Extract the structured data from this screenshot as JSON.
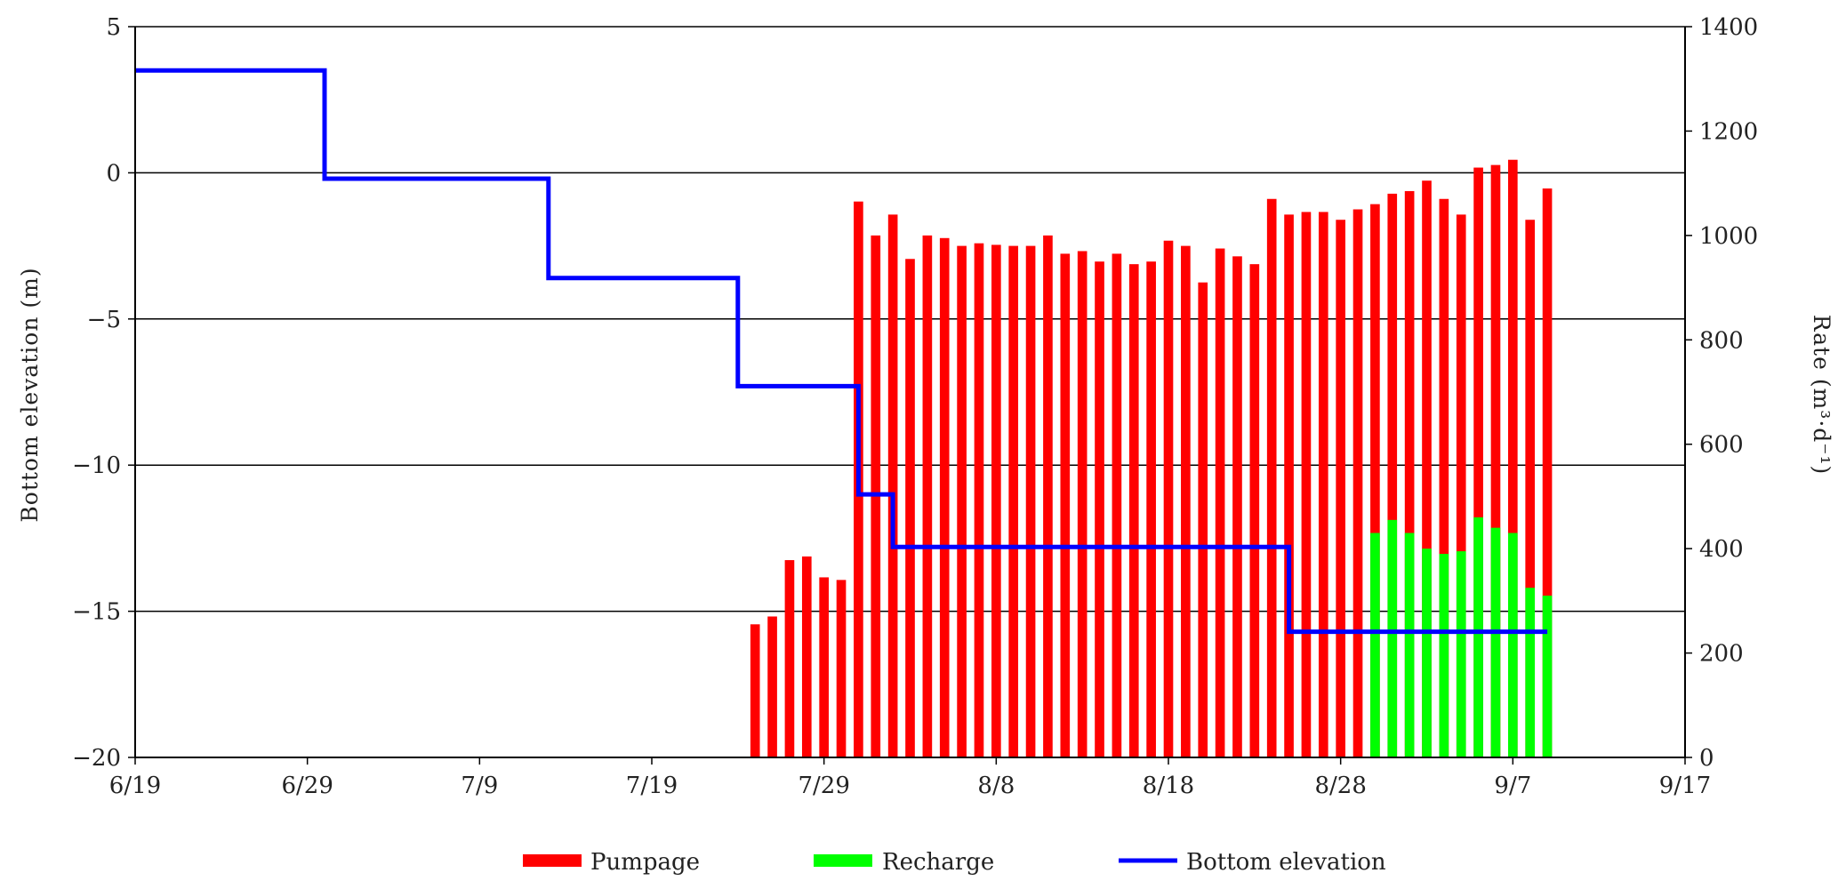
{
  "chart_data": {
    "type": "bar",
    "x_axis": {
      "tick_labels": [
        "6/19",
        "6/29",
        "7/9",
        "7/19",
        "7/29",
        "8/8",
        "8/18",
        "8/28",
        "9/7",
        "9/17"
      ],
      "range_days": [
        0,
        90
      ]
    },
    "y_left": {
      "label": "Bottom elevation (m)",
      "range": [
        -20,
        5
      ],
      "ticks": [
        5,
        0,
        -5,
        -10,
        -15,
        -20
      ]
    },
    "y_right": {
      "label": "Rate (m³·d⁻¹)",
      "range": [
        0,
        1400
      ],
      "ticks": [
        1400,
        1200,
        1000,
        800,
        600,
        400,
        200,
        0
      ]
    },
    "grid": "horizontal",
    "legend_position": "bottom",
    "series": [
      {
        "name": "Pumpage",
        "kind": "bar",
        "axis": "right",
        "color": "#ff0000",
        "dates": [
          "7/25",
          "7/26",
          "7/27",
          "7/28",
          "7/29",
          "7/30",
          "7/31",
          "8/1",
          "8/2",
          "8/3",
          "8/4",
          "8/5",
          "8/6",
          "8/7",
          "8/8",
          "8/9",
          "8/10",
          "8/11",
          "8/12",
          "8/13",
          "8/14",
          "8/15",
          "8/16",
          "8/17",
          "8/18",
          "8/19",
          "8/20",
          "8/21",
          "8/22",
          "8/23",
          "8/24",
          "8/25",
          "8/26",
          "8/27",
          "8/28",
          "8/29",
          "8/30",
          "8/31",
          "9/1",
          "9/2",
          "9/3",
          "9/4",
          "9/5",
          "9/6",
          "9/7",
          "9/8",
          "9/9"
        ],
        "values": [
          255,
          270,
          378,
          385,
          345,
          340,
          1065,
          1000,
          1040,
          955,
          1000,
          995,
          980,
          985,
          982,
          980,
          980,
          1000,
          965,
          970,
          950,
          965,
          945,
          950,
          990,
          980,
          910,
          975,
          960,
          945,
          1070,
          1040,
          1045,
          1045,
          1030,
          1050,
          1060,
          1080,
          1085,
          1105,
          1070,
          1040,
          1130,
          1135,
          1145,
          1030,
          1090
        ]
      },
      {
        "name": "Recharge",
        "kind": "bar",
        "axis": "right",
        "color": "#00ff00",
        "dates": [
          "8/30",
          "8/31",
          "9/1",
          "9/2",
          "9/3",
          "9/4",
          "9/5",
          "9/6",
          "9/7",
          "9/8",
          "9/9"
        ],
        "values": [
          430,
          455,
          430,
          400,
          390,
          395,
          460,
          440,
          430,
          325,
          310
        ]
      },
      {
        "name": "Bottom elevation",
        "kind": "step-line",
        "axis": "left",
        "color": "#0000ff",
        "x_dates": [
          "6/19",
          "6/30",
          "6/30",
          "7/13",
          "7/13",
          "7/24",
          "7/24",
          "7/31",
          "7/31",
          "8/2",
          "8/2",
          "8/25",
          "8/25",
          "9/9"
        ],
        "values": [
          3.5,
          3.5,
          -0.2,
          -0.2,
          -3.6,
          -3.6,
          -7.3,
          -7.3,
          -11,
          -11,
          -12.8,
          -12.8,
          -15.7,
          -15.7
        ]
      }
    ]
  }
}
